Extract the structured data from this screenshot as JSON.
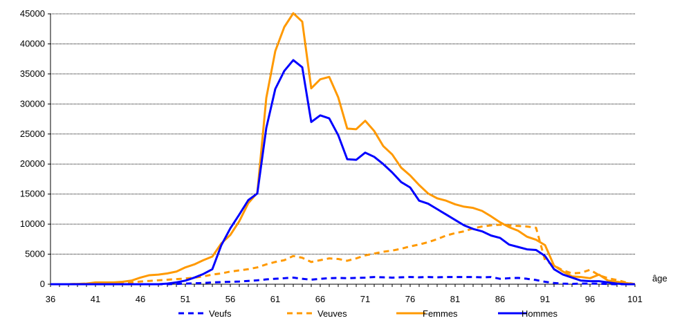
{
  "chart_data": {
    "type": "line",
    "xlabel": "âge",
    "ylim": [
      0,
      45000
    ],
    "y_ticks": [
      0,
      5000,
      10000,
      15000,
      20000,
      25000,
      30000,
      35000,
      40000,
      45000
    ],
    "x_tick_labels": [
      "36",
      "41",
      "46",
      "51",
      "56",
      "61",
      "66",
      "71",
      "76",
      "81",
      "86",
      "91",
      "96",
      "101"
    ],
    "grid": "horizontal",
    "legend_position": "bottom",
    "x": [
      36,
      37,
      38,
      39,
      40,
      41,
      42,
      43,
      44,
      45,
      46,
      47,
      48,
      49,
      50,
      51,
      52,
      53,
      54,
      55,
      56,
      57,
      58,
      59,
      60,
      61,
      62,
      63,
      64,
      65,
      66,
      67,
      68,
      69,
      70,
      71,
      72,
      73,
      74,
      75,
      76,
      77,
      78,
      79,
      80,
      81,
      82,
      83,
      84,
      85,
      86,
      87,
      88,
      89,
      90,
      91,
      92,
      93,
      94,
      95,
      96,
      97,
      98,
      99,
      100,
      101
    ],
    "series": [
      {
        "name": "Veufs",
        "color": "#0000ff",
        "style": "dashed",
        "values": [
          0,
          0,
          0,
          0,
          0,
          0,
          0,
          0,
          0,
          0,
          0,
          0,
          0,
          0,
          50,
          100,
          150,
          200,
          300,
          350,
          400,
          450,
          550,
          650,
          800,
          900,
          1000,
          1100,
          900,
          750,
          900,
          1000,
          1050,
          1000,
          1050,
          1100,
          1200,
          1150,
          1100,
          1150,
          1200,
          1150,
          1200,
          1150,
          1200,
          1200,
          1200,
          1200,
          1150,
          1200,
          900,
          1000,
          1050,
          900,
          700,
          400,
          200,
          100,
          50,
          100,
          100,
          80,
          30,
          0,
          0,
          0
        ]
      },
      {
        "name": "Veuves",
        "color": "#ff9900",
        "style": "dashed",
        "values": [
          0,
          0,
          0,
          50,
          100,
          150,
          150,
          150,
          200,
          300,
          450,
          550,
          650,
          750,
          850,
          950,
          1100,
          1300,
          1600,
          1800,
          2100,
          2300,
          2500,
          2800,
          3300,
          3700,
          4000,
          4700,
          4400,
          3700,
          4000,
          4300,
          4200,
          3900,
          4300,
          4800,
          5100,
          5400,
          5600,
          5900,
          6300,
          6600,
          7000,
          7500,
          8100,
          8500,
          8800,
          9300,
          9600,
          9800,
          9900,
          9800,
          9700,
          9600,
          9400,
          4000,
          3100,
          2300,
          1800,
          1900,
          2400,
          1500,
          1000,
          700,
          300,
          0
        ]
      },
      {
        "name": "Femmes",
        "color": "#ff9900",
        "style": "solid",
        "values": [
          0,
          0,
          0,
          50,
          100,
          300,
          300,
          300,
          400,
          600,
          1100,
          1500,
          1600,
          1800,
          2100,
          2800,
          3300,
          4000,
          4600,
          6800,
          8200,
          10500,
          13500,
          15200,
          31000,
          38800,
          42800,
          45100,
          43700,
          32600,
          34100,
          34500,
          31100,
          25900,
          25800,
          27200,
          25500,
          23000,
          21600,
          19400,
          18100,
          16500,
          15100,
          14300,
          13900,
          13300,
          12900,
          12700,
          12200,
          11300,
          10300,
          9500,
          8900,
          7900,
          7400,
          6500,
          3100,
          2100,
          1300,
          1200,
          1000,
          1600,
          600,
          400,
          200,
          0
        ]
      },
      {
        "name": "Hommes",
        "color": "#0000ff",
        "style": "solid",
        "values": [
          0,
          0,
          0,
          0,
          0,
          0,
          0,
          0,
          0,
          0,
          0,
          0,
          0,
          100,
          300,
          600,
          1100,
          1700,
          2500,
          6500,
          9300,
          11600,
          14000,
          15100,
          26000,
          32500,
          35500,
          37300,
          36100,
          27000,
          28100,
          27600,
          24800,
          20800,
          20700,
          21900,
          21200,
          20000,
          18600,
          17000,
          16100,
          13900,
          13400,
          12500,
          11600,
          10700,
          9800,
          9200,
          8800,
          8100,
          7700,
          6600,
          6200,
          5800,
          5700,
          4700,
          2500,
          1600,
          1100,
          600,
          500,
          500,
          300,
          100,
          0,
          0
        ]
      }
    ]
  }
}
